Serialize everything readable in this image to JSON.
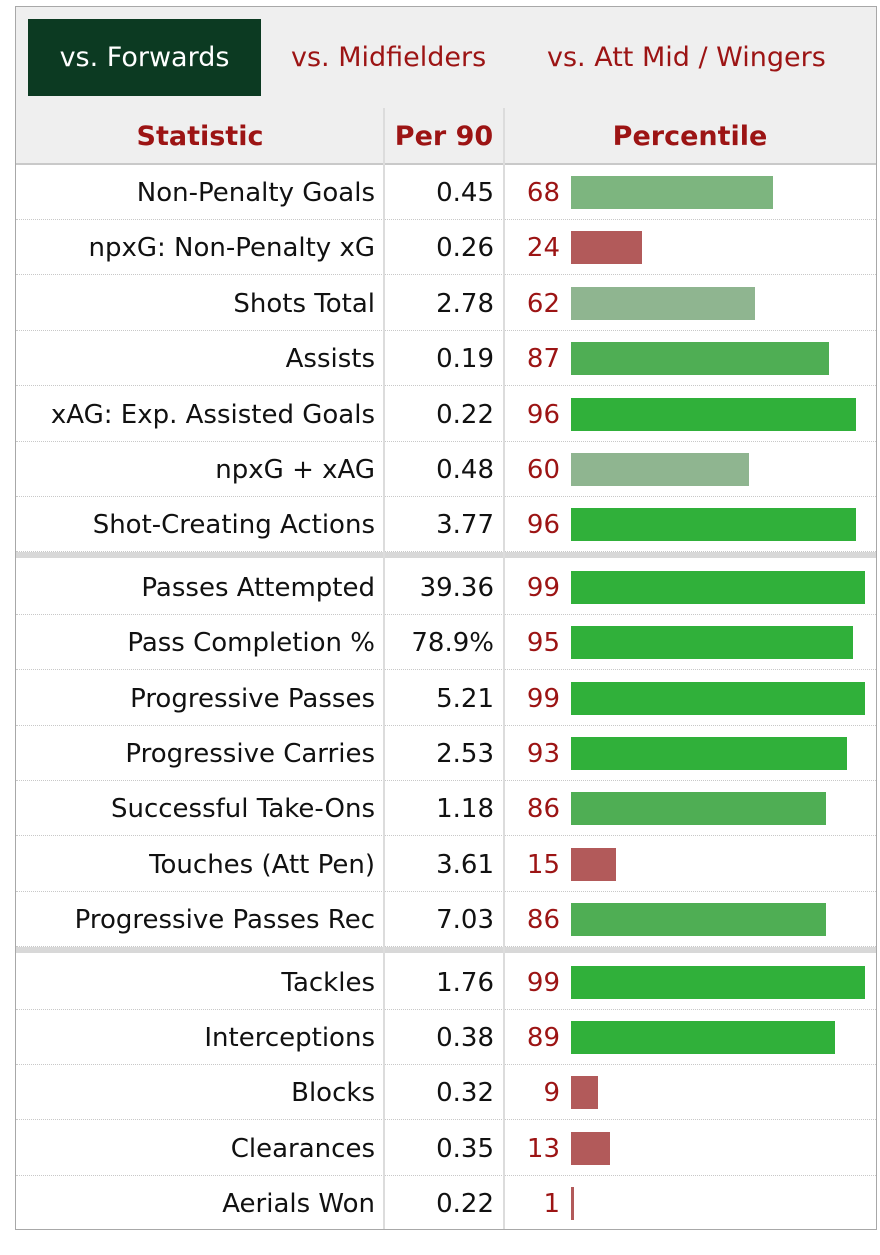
{
  "tabs": [
    {
      "label": "vs. Forwards",
      "active": true
    },
    {
      "label": "vs. Midfielders",
      "active": false
    },
    {
      "label": "vs. Att Mid / Wingers",
      "active": false
    }
  ],
  "table": {
    "headers": {
      "statistic": "Statistic",
      "per90": "Per 90",
      "percentile": "Percentile"
    },
    "groups": [
      [
        {
          "statistic": "Non-Penalty Goals",
          "per90": "0.45",
          "percentile": 68
        },
        {
          "statistic": "npxG: Non-Penalty xG",
          "per90": "0.26",
          "percentile": 24
        },
        {
          "statistic": "Shots Total",
          "per90": "2.78",
          "percentile": 62
        },
        {
          "statistic": "Assists",
          "per90": "0.19",
          "percentile": 87
        },
        {
          "statistic": "xAG: Exp. Assisted Goals",
          "per90": "0.22",
          "percentile": 96
        },
        {
          "statistic": "npxG + xAG",
          "per90": "0.48",
          "percentile": 60
        },
        {
          "statistic": "Shot-Creating Actions",
          "per90": "3.77",
          "percentile": 96
        }
      ],
      [
        {
          "statistic": "Passes Attempted",
          "per90": "39.36",
          "percentile": 99
        },
        {
          "statistic": "Pass Completion %",
          "per90": "78.9%",
          "percentile": 95
        },
        {
          "statistic": "Progressive Passes",
          "per90": "5.21",
          "percentile": 99
        },
        {
          "statistic": "Progressive Carries",
          "per90": "2.53",
          "percentile": 93
        },
        {
          "statistic": "Successful Take-Ons",
          "per90": "1.18",
          "percentile": 86
        },
        {
          "statistic": "Touches (Att Pen)",
          "per90": "3.61",
          "percentile": 15
        },
        {
          "statistic": "Progressive Passes Rec",
          "per90": "7.03",
          "percentile": 86
        }
      ],
      [
        {
          "statistic": "Tackles",
          "per90": "1.76",
          "percentile": 99
        },
        {
          "statistic": "Interceptions",
          "per90": "0.38",
          "percentile": 89
        },
        {
          "statistic": "Blocks",
          "per90": "0.32",
          "percentile": 9
        },
        {
          "statistic": "Clearances",
          "per90": "0.35",
          "percentile": 13
        },
        {
          "statistic": "Aerials Won",
          "per90": "0.22",
          "percentile": 1
        }
      ]
    ]
  },
  "colors": {
    "tab_active_bg": "#0c3a22",
    "accent_red": "#9c1414",
    "bar_low": "#b25a5a",
    "bar_mid": "#8fbe95",
    "bar_high": "#30b03a"
  }
}
